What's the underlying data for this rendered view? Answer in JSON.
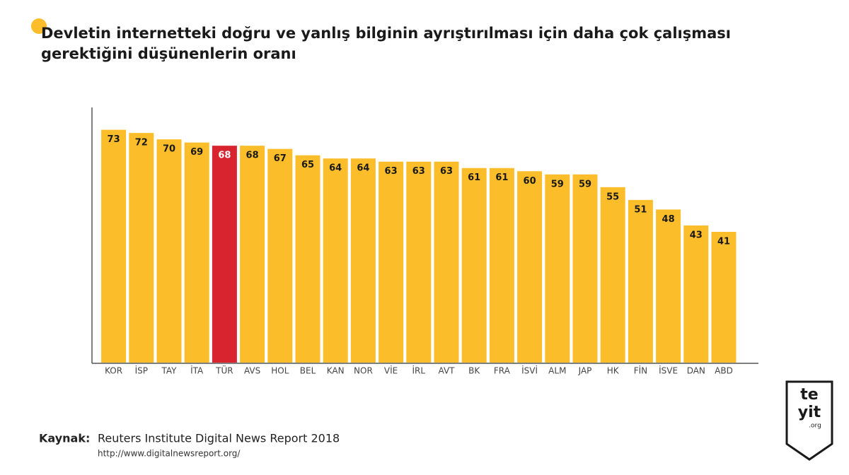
{
  "chart_data": {
    "type": "bar",
    "title": [
      "Devletin internetteki doğru ve yanlış bilginin ayrıştırılması için daha çok çalışması",
      "gerektiğini düşünenlerin oranı"
    ],
    "categories": [
      "KOR",
      "İSP",
      "TAY",
      "İTA",
      "TÜR",
      "AVS",
      "HOL",
      "BEL",
      "KAN",
      "NOR",
      "VİE",
      "İRL",
      "AVT",
      "BK",
      "FRA",
      "İSVİ",
      "ALM",
      "JAP",
      "HK",
      "FİN",
      "İSVE",
      "DAN",
      "ABD"
    ],
    "values": [
      73,
      72,
      70,
      69,
      68,
      68,
      67,
      65,
      64,
      64,
      63,
      63,
      63,
      61,
      61,
      60,
      59,
      59,
      55,
      51,
      48,
      43,
      41
    ],
    "colors": [
      "#fbbd2a",
      "#fbbd2a",
      "#fbbd2a",
      "#fbbd2a",
      "#d7242f",
      "#fbbd2a",
      "#fbbd2a",
      "#fbbd2a",
      "#fbbd2a",
      "#fbbd2a",
      "#fbbd2a",
      "#fbbd2a",
      "#fbbd2a",
      "#fbbd2a",
      "#fbbd2a",
      "#fbbd2a",
      "#fbbd2a",
      "#fbbd2a",
      "#fbbd2a",
      "#fbbd2a",
      "#fbbd2a",
      "#fbbd2a",
      "#fbbd2a"
    ],
    "ylim": [
      0,
      80
    ],
    "source_label": "Kaynak:",
    "source": "Reuters Institute Digital News Report 2018",
    "source_url": "http://www.digitalnewsreport.org/",
    "logo": [
      "te",
      "yit",
      ".org"
    ]
  }
}
